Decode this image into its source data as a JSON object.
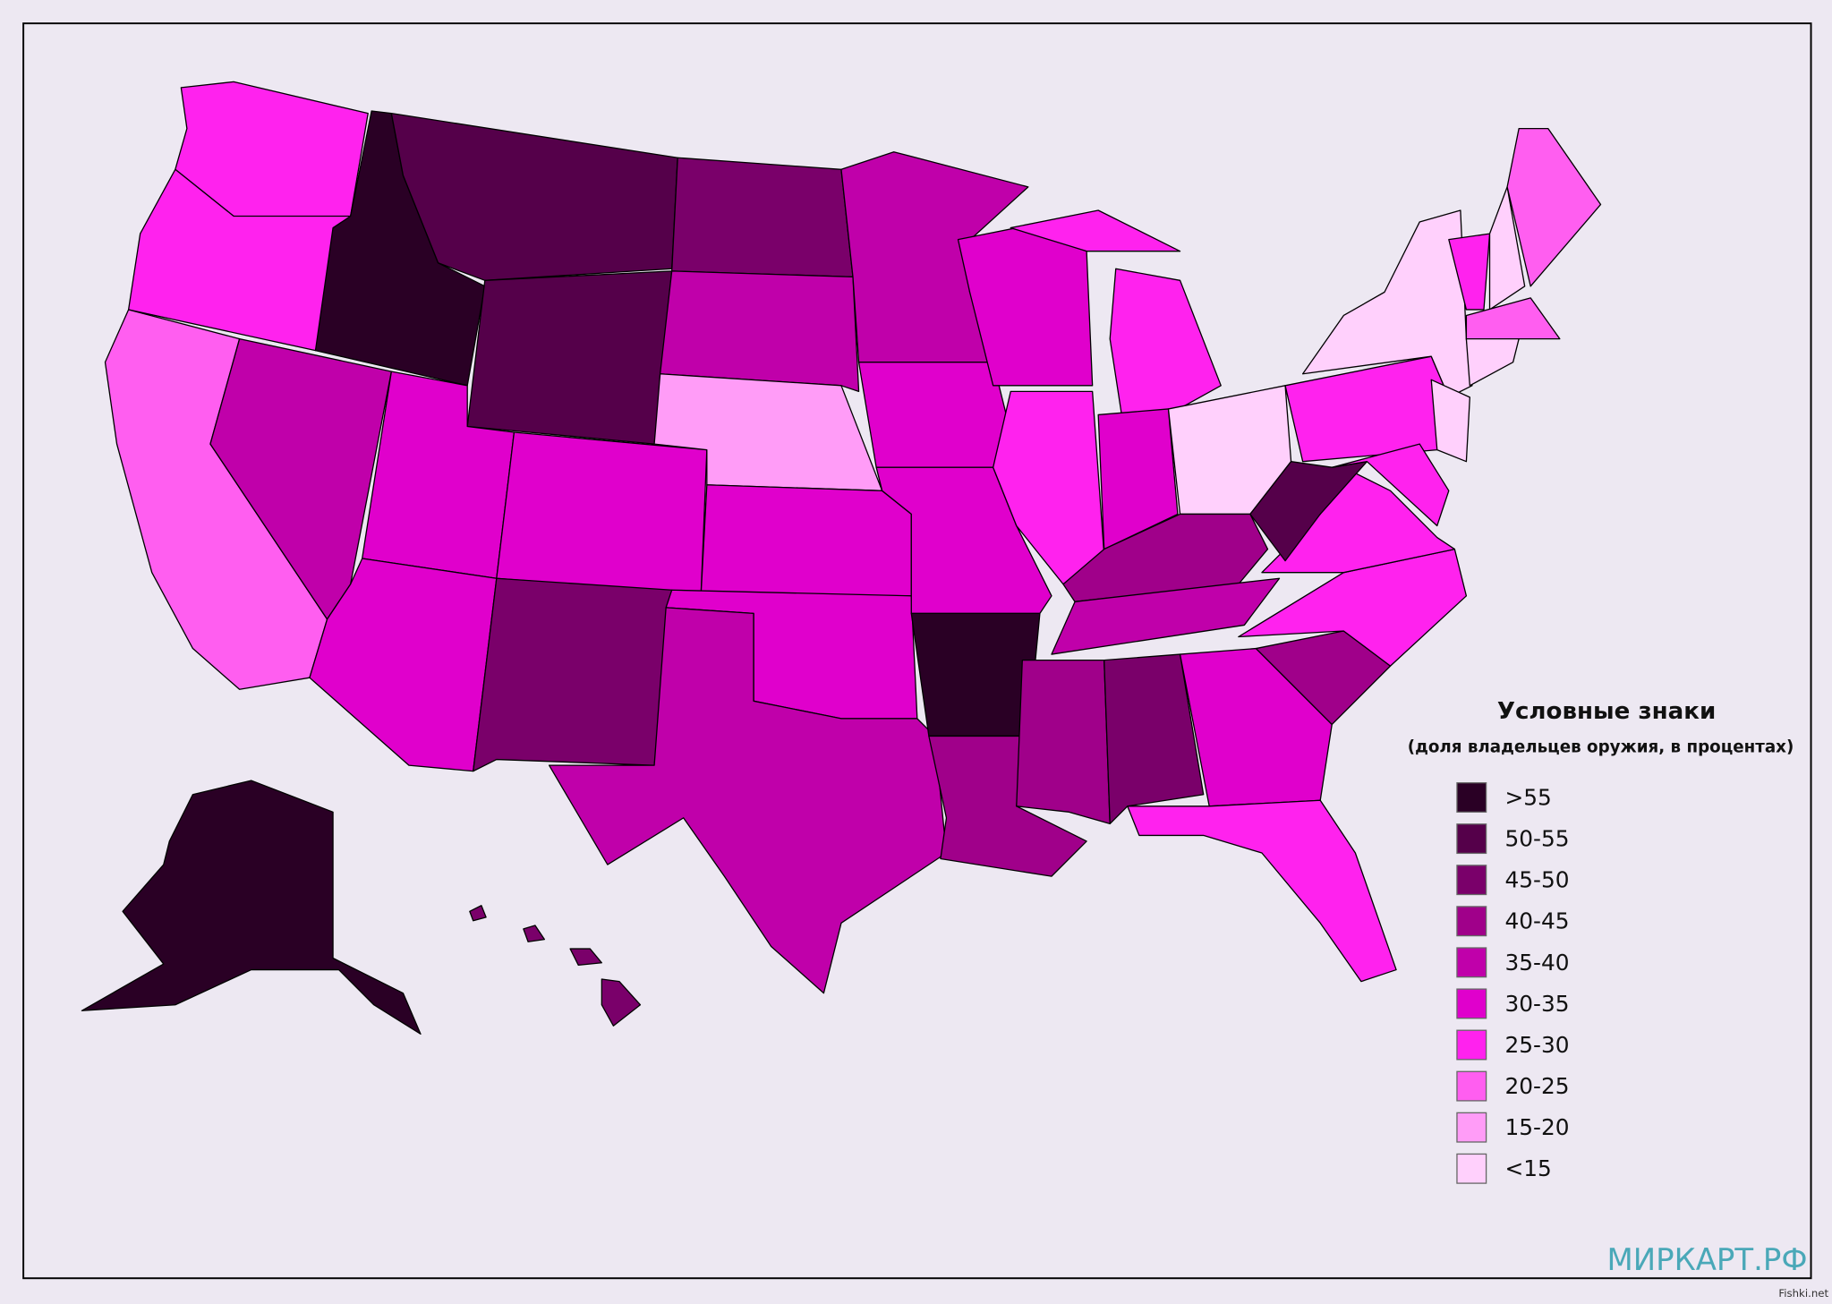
{
  "legend": {
    "title": "Условные знаки",
    "subtitle": "(доля владельцев оружия, в процентах)",
    "items": [
      {
        "label": ">55",
        "color": "#2a0025"
      },
      {
        "label": "50-55",
        "color": "#55004a"
      },
      {
        "label": "45-50",
        "color": "#7a006a"
      },
      {
        "label": "40-45",
        "color": "#a0008a"
      },
      {
        "label": "35-40",
        "color": "#c000aa"
      },
      {
        "label": "30-35",
        "color": "#e000cc"
      },
      {
        "label": "25-30",
        "color": "#ff22ee"
      },
      {
        "label": "20-25",
        "color": "#ff5ef0"
      },
      {
        "label": "15-20",
        "color": "#ff9cf7"
      },
      {
        "label": "<15",
        "color": "#ffd0fc"
      }
    ]
  },
  "watermark": "МИРКАРТ.РФ",
  "credit": "Fishki.net"
}
